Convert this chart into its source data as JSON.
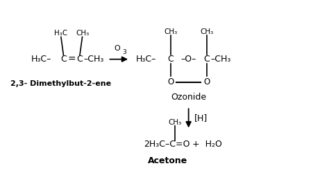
{
  "bg_color": "#ffffff",
  "text_color": "#000000",
  "fig_width": 4.74,
  "fig_height": 2.66,
  "dpi": 100,
  "xlim": [
    0,
    10
  ],
  "ylim": [
    0,
    5.5
  ],
  "alkene_label": "2,3- Dimethylbut-2-ene",
  "ozonide_label": "Ozonide",
  "acetone_label": "Acetone",
  "h3c_top_alkene": "H₃C",
  "ch3_top_alkene": "CH₃",
  "alkene_left": "H₃C–",
  "alkene_cleft": "C",
  "alkene_eq": "=",
  "alkene_cright": "C",
  "alkene_right": "–CH₃",
  "o3_label": "O",
  "o3_sub": "3",
  "oz_ch3_left": "CH₃",
  "oz_ch3_right": "CH₃",
  "oz_h3c": "H₃C–",
  "oz_cleft": "C",
  "oz_o": "–O–",
  "oz_cright": "C",
  "oz_ch3r": "–CH₃",
  "oz_o_bot_l": "O",
  "oz_o_bot_r": "O",
  "h_reagent": "[H]",
  "ace_ch3": "CH₃",
  "ace_main": "2H₃C–C=O",
  "ace_water": "+  H₂O"
}
